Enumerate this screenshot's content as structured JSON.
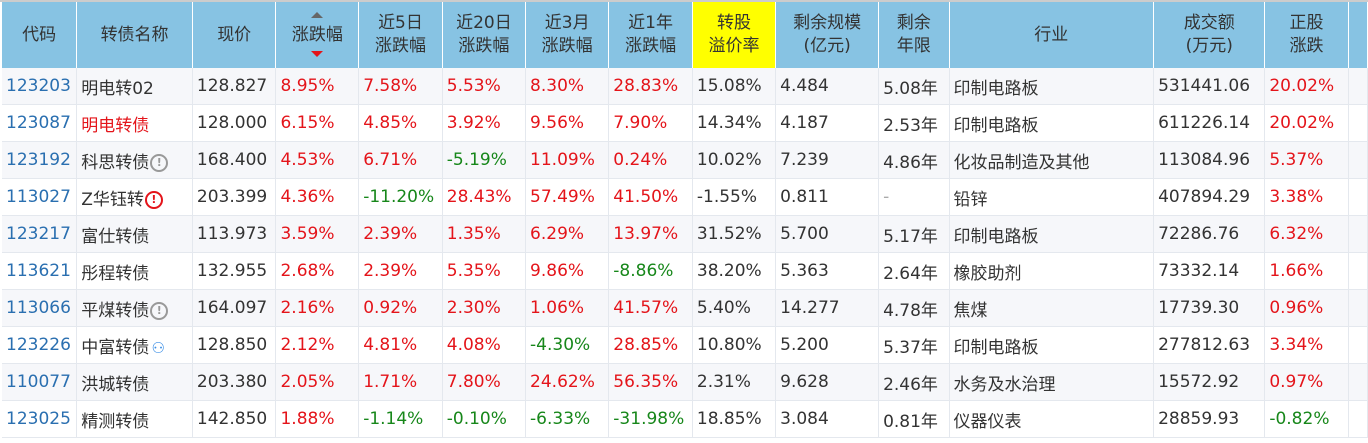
{
  "headers": [
    [
      "代码"
    ],
    [
      "转债名称"
    ],
    [
      "现价"
    ],
    [
      "涨跌幅"
    ],
    [
      "近5日",
      "涨跌幅"
    ],
    [
      "近20日",
      "涨跌幅"
    ],
    [
      "近3月",
      "涨跌幅"
    ],
    [
      "近1年",
      "涨跌幅"
    ],
    [
      "转股",
      "溢价率"
    ],
    [
      "剩余规模",
      "(亿元)"
    ],
    [
      "剩余",
      "年限"
    ],
    [
      "行业"
    ],
    [
      "成交额",
      "(万元)"
    ],
    [
      "正股",
      "涨跌"
    ],
    [
      ""
    ]
  ],
  "rows": [
    {
      "code": "123203",
      "name": "明电转02",
      "name_color": "normal",
      "icon": "",
      "price": "128.827",
      "chg": "8.95%",
      "d5": "7.58%",
      "d20": "5.53%",
      "m3": "8.30%",
      "y1": "28.83%",
      "premium": "15.08%",
      "scale": "4.484",
      "years": "5.08年",
      "industry": "印制电路板",
      "volume": "531441.06",
      "stock": "20.02%"
    },
    {
      "code": "123087",
      "name": "明电转债",
      "name_color": "red",
      "icon": "",
      "price": "128.000",
      "chg": "6.15%",
      "d5": "4.85%",
      "d20": "3.92%",
      "m3": "9.56%",
      "y1": "7.90%",
      "premium": "14.34%",
      "scale": "4.187",
      "years": "2.53年",
      "industry": "印制电路板",
      "volume": "611226.14",
      "stock": "20.02%"
    },
    {
      "code": "123192",
      "name": "科思转债",
      "name_color": "normal",
      "icon": "info-grey",
      "price": "168.400",
      "chg": "4.53%",
      "d5": "6.71%",
      "d20": "-5.19%",
      "m3": "11.09%",
      "y1": "0.24%",
      "premium": "10.02%",
      "scale": "7.239",
      "years": "4.86年",
      "industry": "化妆品制造及其他",
      "volume": "113084.96",
      "stock": "5.37%"
    },
    {
      "code": "113027",
      "name": "Z华钰转",
      "name_color": "normal",
      "icon": "warn-red",
      "price": "203.399",
      "chg": "4.36%",
      "d5": "-11.20%",
      "d20": "28.43%",
      "m3": "57.49%",
      "y1": "41.50%",
      "premium": "-1.55%",
      "scale": "0.811",
      "years": "-",
      "industry": "铅锌",
      "volume": "407894.29",
      "stock": "3.38%"
    },
    {
      "code": "123217",
      "name": "富仕转债",
      "name_color": "normal",
      "icon": "",
      "price": "113.973",
      "chg": "3.59%",
      "d5": "2.39%",
      "d20": "1.35%",
      "m3": "6.29%",
      "y1": "13.97%",
      "premium": "31.52%",
      "scale": "5.700",
      "years": "5.17年",
      "industry": "印制电路板",
      "volume": "72286.76",
      "stock": "6.32%"
    },
    {
      "code": "113621",
      "name": "彤程转债",
      "name_color": "normal",
      "icon": "",
      "price": "132.955",
      "chg": "2.68%",
      "d5": "2.39%",
      "d20": "5.35%",
      "m3": "9.86%",
      "y1": "-8.86%",
      "premium": "38.20%",
      "scale": "5.363",
      "years": "2.64年",
      "industry": "橡胶助剂",
      "volume": "73332.14",
      "stock": "1.66%"
    },
    {
      "code": "113066",
      "name": "平煤转债",
      "name_color": "normal",
      "icon": "info-grey",
      "price": "164.097",
      "chg": "2.16%",
      "d5": "0.92%",
      "d20": "2.30%",
      "m3": "1.06%",
      "y1": "41.57%",
      "premium": "5.40%",
      "scale": "14.277",
      "years": "4.78年",
      "industry": "焦煤",
      "volume": "17739.30",
      "stock": "0.96%"
    },
    {
      "code": "123226",
      "name": "中富转债",
      "name_color": "normal",
      "icon": "user-blue",
      "price": "128.850",
      "chg": "2.12%",
      "d5": "4.81%",
      "d20": "4.08%",
      "m3": "-4.30%",
      "y1": "28.85%",
      "premium": "10.80%",
      "scale": "5.200",
      "years": "5.37年",
      "industry": "印制电路板",
      "volume": "277812.63",
      "stock": "3.34%"
    },
    {
      "code": "110077",
      "name": "洪城转债",
      "name_color": "normal",
      "icon": "",
      "price": "203.380",
      "chg": "2.05%",
      "d5": "1.71%",
      "d20": "7.80%",
      "m3": "24.62%",
      "y1": "56.35%",
      "premium": "2.31%",
      "scale": "9.628",
      "years": "2.46年",
      "industry": "水务及水治理",
      "volume": "15572.92",
      "stock": "0.97%"
    },
    {
      "code": "123025",
      "name": "精测转债",
      "name_color": "normal",
      "icon": "",
      "price": "142.850",
      "chg": "1.88%",
      "d5": "-1.14%",
      "d20": "-0.10%",
      "m3": "-6.33%",
      "y1": "-31.98%",
      "premium": "18.85%",
      "scale": "3.084",
      "years": "0.81年",
      "industry": "仪器仪表",
      "volume": "28859.93",
      "stock": "-0.82%"
    }
  ],
  "colors": {
    "header": "#87c3e3",
    "highlight": "#ffff00",
    "up": "#e4141a",
    "down": "#17871a",
    "code": "#2a6fb0"
  }
}
